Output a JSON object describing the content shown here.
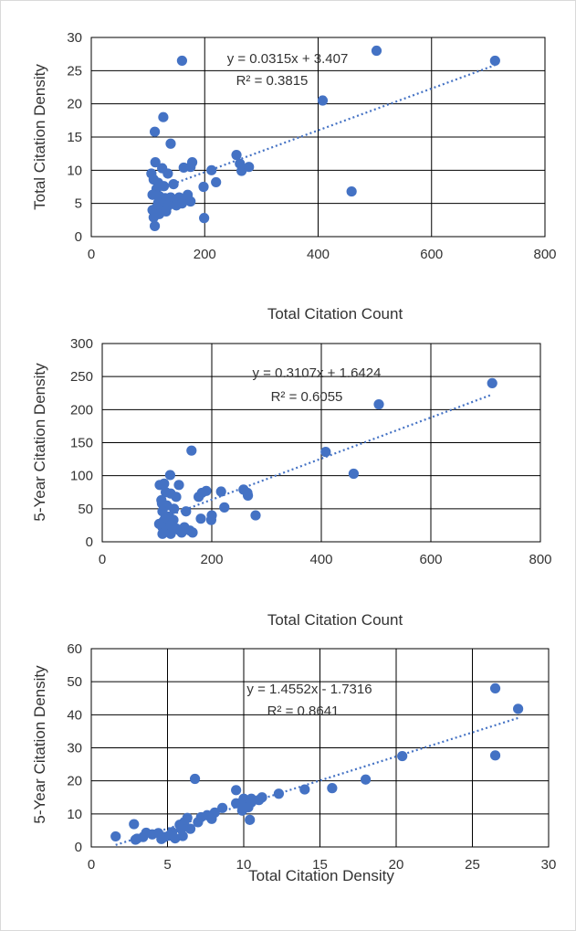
{
  "chart_data": [
    {
      "type": "scatter",
      "xlabel": "Total Citation Count",
      "ylabel": "Total Citation Density",
      "xlim": [
        0,
        800
      ],
      "ylim": [
        0,
        30
      ],
      "xticks": [
        0,
        200,
        400,
        600,
        800
      ],
      "yticks": [
        0,
        5,
        10,
        15,
        20,
        25,
        30
      ],
      "grid": "both",
      "trendline": {
        "style": "dotted",
        "slope": 0.0315,
        "intercept": 3.407
      },
      "annotation": {
        "equation": "y = 0.0315x + 3.407",
        "r2": "R² = 0.3815"
      },
      "series": [
        {
          "color": "#4472c4",
          "points": [
            [
              160,
              26.5
            ],
            [
              503,
              28
            ],
            [
              712,
              26.5
            ],
            [
              408,
              20.5
            ],
            [
              127,
              18
            ],
            [
              112,
              15.8
            ],
            [
              140,
              14
            ],
            [
              459,
              6.8
            ],
            [
              199,
              2.8
            ],
            [
              112,
              1.6
            ],
            [
              108,
              4
            ],
            [
              106,
              9.5
            ],
            [
              113,
              11.2
            ],
            [
              125,
              10.3
            ],
            [
              135,
              9.5
            ],
            [
              110,
              8.6
            ],
            [
              118,
              8.1
            ],
            [
              115,
              7.2
            ],
            [
              128,
              7.6
            ],
            [
              108,
              6.3
            ],
            [
              120,
              6.1
            ],
            [
              130,
              5.8
            ],
            [
              140,
              5.9
            ],
            [
              147,
              5.3
            ],
            [
              118,
              5.1
            ],
            [
              126,
              4.8
            ],
            [
              115,
              4.4
            ],
            [
              135,
              4.6
            ],
            [
              114,
              3.6
            ],
            [
              120,
              3.4
            ],
            [
              110,
              2.9
            ],
            [
              132,
              3.8
            ],
            [
              145,
              7.9
            ],
            [
              155,
              5.9
            ],
            [
              165,
              5.6
            ],
            [
              175,
              5.3
            ],
            [
              160,
              5
            ],
            [
              150,
              4.7
            ],
            [
              163,
              10.4
            ],
            [
              175,
              10.5
            ],
            [
              178,
              11.2
            ],
            [
              170,
              6.3
            ],
            [
              198,
              7.5
            ],
            [
              212,
              10
            ],
            [
              220,
              8.2
            ],
            [
              256,
              12.3
            ],
            [
              262,
              11
            ],
            [
              265,
              9.9
            ],
            [
              278,
              10.5
            ]
          ]
        }
      ]
    },
    {
      "type": "scatter",
      "xlabel": "Total Citation Count",
      "ylabel": "5-Year Citation Density",
      "xlim": [
        0,
        800
      ],
      "ylim": [
        0,
        300
      ],
      "xticks": [
        0,
        200,
        400,
        600,
        800
      ],
      "yticks": [
        0,
        50,
        100,
        150,
        200,
        250,
        300
      ],
      "grid": "both",
      "trendline": {
        "style": "dotted",
        "slope": 0.3107,
        "intercept": 1.6424
      },
      "annotation": {
        "equation": "y = 0.3107x + 1.6424",
        "r2": "R² = 0.6055"
      },
      "series": [
        {
          "color": "#4472c4",
          "points": [
            [
              712,
              240
            ],
            [
              505,
              208
            ],
            [
              163,
              138
            ],
            [
              408,
              136
            ],
            [
              459,
              103
            ],
            [
              124,
              101
            ],
            [
              105,
              86
            ],
            [
              113,
              88
            ],
            [
              140,
              86
            ],
            [
              116,
              75
            ],
            [
              125,
              73
            ],
            [
              135,
              68
            ],
            [
              176,
              68
            ],
            [
              182,
              74
            ],
            [
              190,
              77
            ],
            [
              217,
              76
            ],
            [
              258,
              79
            ],
            [
              266,
              70
            ],
            [
              265,
              74
            ],
            [
              108,
              63
            ],
            [
              109,
              58
            ],
            [
              118,
              55
            ],
            [
              131,
              50
            ],
            [
              153,
              46
            ],
            [
              110,
              46
            ],
            [
              121,
              38
            ],
            [
              114,
              34
            ],
            [
              130,
              33
            ],
            [
              199,
              33
            ],
            [
              200,
              40
            ],
            [
              280,
              40
            ],
            [
              223,
              52
            ],
            [
              180,
              35
            ],
            [
              104,
              27
            ],
            [
              110,
              22
            ],
            [
              115,
              16
            ],
            [
              110,
              12
            ],
            [
              125,
              12
            ],
            [
              140,
              18
            ],
            [
              150,
              22
            ],
            [
              160,
              17
            ],
            [
              145,
              14
            ],
            [
              125,
              25
            ],
            [
              165,
              14
            ],
            [
              135,
              20
            ]
          ]
        }
      ]
    },
    {
      "type": "scatter",
      "xlabel": "Total Citation Density",
      "ylabel": "5-Year Citation Density",
      "xlim": [
        0,
        30
      ],
      "ylim": [
        0,
        60
      ],
      "xticks": [
        0,
        5,
        10,
        15,
        20,
        25,
        30
      ],
      "yticks": [
        0,
        10,
        20,
        30,
        40,
        50,
        60
      ],
      "grid": "both",
      "trendline": {
        "style": "dotted",
        "slope": 1.4552,
        "intercept": -1.7316
      },
      "annotation": {
        "equation": "y = 1.4552x - 1.7316",
        "r2": "R² = 0.8641"
      },
      "series": [
        {
          "color": "#4472c4",
          "points": [
            [
              26.5,
              48
            ],
            [
              28,
              41.8
            ],
            [
              26.5,
              27.7
            ],
            [
              20.4,
              27.5
            ],
            [
              18,
              20.4
            ],
            [
              15.8,
              17.8
            ],
            [
              14,
              17.4
            ],
            [
              6.8,
              20.6
            ],
            [
              12.3,
              16.1
            ],
            [
              11.2,
              15
            ],
            [
              10.5,
              14.6
            ],
            [
              10,
              14.6
            ],
            [
              10.5,
              13.5
            ],
            [
              10.3,
              12
            ],
            [
              9.5,
              17.2
            ],
            [
              9.9,
              11
            ],
            [
              9.5,
              13.2
            ],
            [
              10.4,
              8.2
            ],
            [
              8.6,
              11.8
            ],
            [
              8.1,
              10.4
            ],
            [
              7.6,
              9.6
            ],
            [
              7.2,
              9
            ],
            [
              6.3,
              8.8
            ],
            [
              6.1,
              7.5
            ],
            [
              5.8,
              6.7
            ],
            [
              5.9,
              5.4
            ],
            [
              5.3,
              4.5
            ],
            [
              5.1,
              3.4
            ],
            [
              4.8,
              3
            ],
            [
              4.4,
              4.2
            ],
            [
              4.6,
              2.4
            ],
            [
              3.6,
              4.3
            ],
            [
              3.4,
              3
            ],
            [
              2.9,
              2.2
            ],
            [
              2.8,
              6.9
            ],
            [
              1.6,
              3.2
            ],
            [
              4,
              3.8
            ],
            [
              3,
              2.5
            ],
            [
              5.5,
              2.6
            ],
            [
              6,
              3.3
            ],
            [
              6.5,
              5.5
            ],
            [
              7,
              7.5
            ],
            [
              7.9,
              8.5
            ],
            [
              11,
              14.2
            ],
            [
              9.8,
              13.3
            ]
          ]
        }
      ]
    }
  ]
}
